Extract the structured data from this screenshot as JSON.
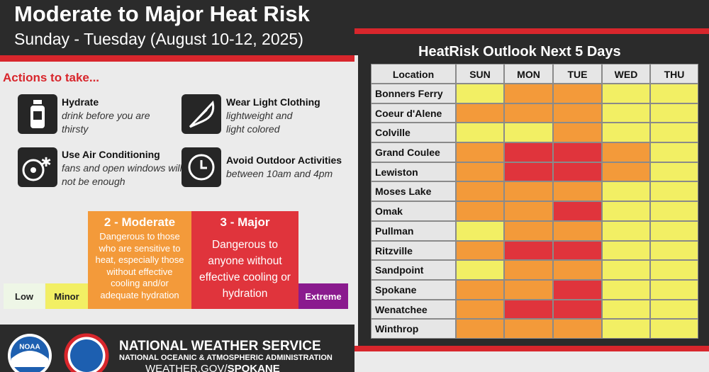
{
  "header": {
    "title": "Moderate to Major Heat Risk",
    "subtitle": "Sunday - Tuesday (August 10-12, 2025)"
  },
  "actions": {
    "heading": "Actions to take...",
    "items": [
      {
        "title": "Hydrate",
        "text": "drink before you are thirsty"
      },
      {
        "title": "Wear Light Clothing",
        "text": "lightweight and light colored"
      },
      {
        "title": "Use Air Conditioning",
        "text": "fans and open windows will not be enough"
      },
      {
        "title": "Avoid Outdoor Activities",
        "text": "between 10am and 4pm"
      }
    ]
  },
  "legend": [
    {
      "level": 0,
      "label": "Low",
      "color": "#eef6e6"
    },
    {
      "level": 1,
      "label": "Minor",
      "color": "#f2ef64"
    },
    {
      "level": 2,
      "label": "2 - Moderate",
      "text": "Dangerous to those who are sensitive to heat, especially those without effective cooling and/or adequate hydration",
      "color": "#f39a3a"
    },
    {
      "level": 3,
      "label": "3 - Major",
      "text": "Dangerous to anyone without effective cooling or hydration",
      "color": "#e0343c"
    },
    {
      "level": 4,
      "label": "Extreme",
      "color": "#8a1a8e"
    }
  ],
  "table": {
    "title": "HeatRisk Outlook Next 5 Days",
    "columns": [
      "Location",
      "SUN",
      "MON",
      "TUE",
      "WED",
      "THU"
    ],
    "rows": [
      {
        "name": "Bonners Ferry",
        "levels": [
          1,
          2,
          2,
          1,
          1
        ]
      },
      {
        "name": "Coeur d'Alene",
        "levels": [
          2,
          2,
          2,
          1,
          1
        ]
      },
      {
        "name": "Colville",
        "levels": [
          1,
          1,
          2,
          1,
          1
        ]
      },
      {
        "name": "Grand Coulee",
        "levels": [
          2,
          3,
          3,
          2,
          1
        ]
      },
      {
        "name": "Lewiston",
        "levels": [
          2,
          3,
          3,
          2,
          1
        ]
      },
      {
        "name": "Moses Lake",
        "levels": [
          2,
          2,
          2,
          1,
          1
        ]
      },
      {
        "name": "Omak",
        "levels": [
          2,
          2,
          3,
          1,
          1
        ]
      },
      {
        "name": "Pullman",
        "levels": [
          1,
          2,
          2,
          1,
          1
        ]
      },
      {
        "name": "Ritzville",
        "levels": [
          2,
          3,
          3,
          1,
          1
        ]
      },
      {
        "name": "Sandpoint",
        "levels": [
          1,
          2,
          2,
          1,
          1
        ]
      },
      {
        "name": "Spokane",
        "levels": [
          2,
          2,
          3,
          1,
          1
        ]
      },
      {
        "name": "Wenatchee",
        "levels": [
          2,
          3,
          3,
          1,
          1
        ]
      },
      {
        "name": "Winthrop",
        "levels": [
          2,
          2,
          2,
          1,
          1
        ]
      }
    ]
  },
  "footer": {
    "agency": "NATIONAL WEATHER SERVICE",
    "parent": "NATIONAL OCEANIC & ATMOSPHERIC ADMINISTRATION",
    "site": "WEATHER.GOV/",
    "office": "SPOKANE",
    "noaa": "NOAA"
  }
}
